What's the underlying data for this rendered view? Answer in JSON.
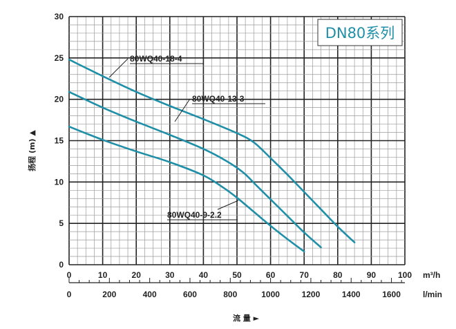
{
  "chart_data": {
    "type": "line",
    "badge": "DN80系列",
    "ylabel": "扬程 (m) ▲",
    "xlabel": "流 量 ►",
    "x_unit_primary": "m³/h",
    "x_unit_secondary": "l/min",
    "xlim": [
      0,
      100
    ],
    "ylim": [
      0,
      30
    ],
    "x_ticks": [
      "0",
      "10",
      "20",
      "30",
      "40",
      "50",
      "60",
      "70",
      "80",
      "90",
      "100"
    ],
    "x_ticks_secondary": [
      "0",
      "200",
      "400",
      "600",
      "800",
      "1000",
      "1200",
      "1400",
      "1600"
    ],
    "y_ticks": [
      "0",
      "5",
      "10",
      "15",
      "20",
      "25",
      "30"
    ],
    "grid": true,
    "series_color": "#1f8fa8",
    "series": [
      {
        "name": "80WQ40-18-4",
        "x": [
          0,
          10,
          20,
          30,
          40,
          50,
          55,
          60,
          65,
          70,
          75,
          80,
          85
        ],
        "y": [
          24.8,
          22.8,
          20.9,
          19.2,
          17.6,
          15.9,
          14.8,
          12.9,
          10.9,
          8.8,
          6.7,
          4.6,
          2.7
        ]
      },
      {
        "name": "80WQ40-13-3",
        "x": [
          0,
          10,
          20,
          30,
          40,
          47,
          52,
          56,
          60,
          65,
          70,
          75
        ],
        "y": [
          20.9,
          19.0,
          17.3,
          15.7,
          14.0,
          12.5,
          11.1,
          9.5,
          7.9,
          5.9,
          3.9,
          2.1
        ]
      },
      {
        "name": "80WQ40-9-2.2",
        "x": [
          0,
          10,
          20,
          30,
          40,
          46,
          50,
          55,
          60,
          65,
          70
        ],
        "y": [
          16.7,
          15.1,
          13.7,
          12.4,
          10.8,
          9.3,
          8.1,
          6.4,
          4.7,
          3.1,
          1.6
        ]
      }
    ]
  }
}
